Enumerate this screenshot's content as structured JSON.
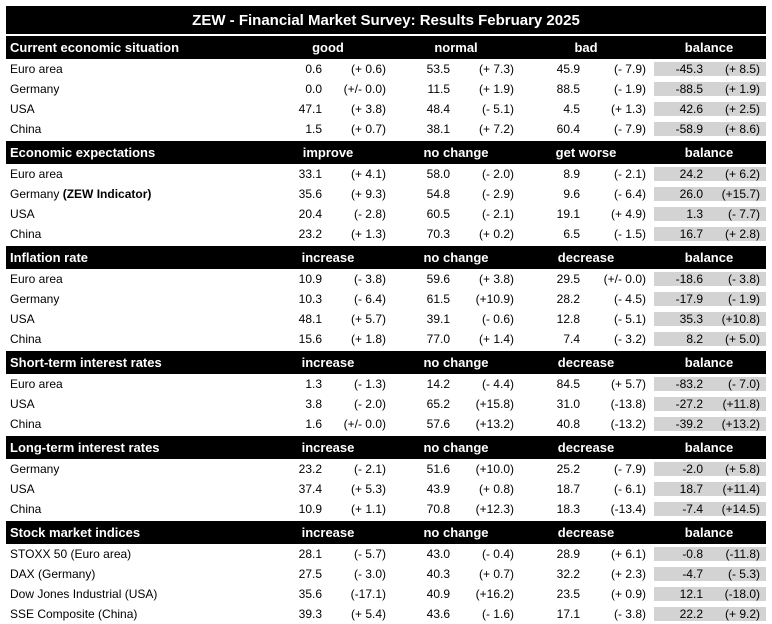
{
  "title": "ZEW - Financial Market Survey: Results February 2025",
  "sections": [
    {
      "name": "Current economic situation",
      "cols": [
        "good",
        "normal",
        "bad",
        "balance"
      ],
      "rows": [
        {
          "label": "Euro area",
          "v": [
            "0.6",
            "(+ 0.6)",
            "53.5",
            "(+ 7.3)",
            "45.9",
            "(- 7.9)",
            "-45.3",
            "(+ 8.5)"
          ]
        },
        {
          "label": "Germany",
          "v": [
            "0.0",
            "(+/- 0.0)",
            "11.5",
            "(+ 1.9)",
            "88.5",
            "(- 1.9)",
            "-88.5",
            "(+ 1.9)"
          ]
        },
        {
          "label": "USA",
          "v": [
            "47.1",
            "(+ 3.8)",
            "48.4",
            "(- 5.1)",
            "4.5",
            "(+ 1.3)",
            "42.6",
            "(+ 2.5)"
          ]
        },
        {
          "label": "China",
          "v": [
            "1.5",
            "(+ 0.7)",
            "38.1",
            "(+ 7.2)",
            "60.4",
            "(- 7.9)",
            "-58.9",
            "(+ 8.6)"
          ]
        }
      ]
    },
    {
      "name": "Economic expectations",
      "cols": [
        "improve",
        "no change",
        "get worse",
        "balance"
      ],
      "rows": [
        {
          "label": "Euro area",
          "v": [
            "33.1",
            "(+ 4.1)",
            "58.0",
            "(- 2.0)",
            "8.9",
            "(- 2.1)",
            "24.2",
            "(+ 6.2)"
          ]
        },
        {
          "label": "Germany",
          "label_bold": "(ZEW Indicator)",
          "v": [
            "35.6",
            "(+ 9.3)",
            "54.8",
            "(- 2.9)",
            "9.6",
            "(- 6.4)",
            "26.0",
            "(+15.7)"
          ]
        },
        {
          "label": "USA",
          "v": [
            "20.4",
            "(- 2.8)",
            "60.5",
            "(- 2.1)",
            "19.1",
            "(+ 4.9)",
            "1.3",
            "(- 7.7)"
          ]
        },
        {
          "label": "China",
          "v": [
            "23.2",
            "(+ 1.3)",
            "70.3",
            "(+ 0.2)",
            "6.5",
            "(- 1.5)",
            "16.7",
            "(+ 2.8)"
          ]
        }
      ]
    },
    {
      "name": "Inflation rate",
      "cols": [
        "increase",
        "no change",
        "decrease",
        "balance"
      ],
      "rows": [
        {
          "label": "Euro area",
          "v": [
            "10.9",
            "(- 3.8)",
            "59.6",
            "(+ 3.8)",
            "29.5",
            "(+/- 0.0)",
            "-18.6",
            "(- 3.8)"
          ]
        },
        {
          "label": "Germany",
          "v": [
            "10.3",
            "(- 6.4)",
            "61.5",
            "(+10.9)",
            "28.2",
            "(- 4.5)",
            "-17.9",
            "(- 1.9)"
          ]
        },
        {
          "label": "USA",
          "v": [
            "48.1",
            "(+ 5.7)",
            "39.1",
            "(- 0.6)",
            "12.8",
            "(- 5.1)",
            "35.3",
            "(+10.8)"
          ]
        },
        {
          "label": "China",
          "v": [
            "15.6",
            "(+ 1.8)",
            "77.0",
            "(+ 1.4)",
            "7.4",
            "(- 3.2)",
            "8.2",
            "(+ 5.0)"
          ]
        }
      ]
    },
    {
      "name": "Short-term interest rates",
      "cols": [
        "increase",
        "no change",
        "decrease",
        "balance"
      ],
      "rows": [
        {
          "label": "Euro area",
          "v": [
            "1.3",
            "(- 1.3)",
            "14.2",
            "(- 4.4)",
            "84.5",
            "(+ 5.7)",
            "-83.2",
            "(- 7.0)"
          ]
        },
        {
          "label": "USA",
          "v": [
            "3.8",
            "(- 2.0)",
            "65.2",
            "(+15.8)",
            "31.0",
            "(-13.8)",
            "-27.2",
            "(+11.8)"
          ]
        },
        {
          "label": "China",
          "v": [
            "1.6",
            "(+/- 0.0)",
            "57.6",
            "(+13.2)",
            "40.8",
            "(-13.2)",
            "-39.2",
            "(+13.2)"
          ]
        }
      ]
    },
    {
      "name": "Long-term interest rates",
      "cols": [
        "increase",
        "no change",
        "decrease",
        "balance"
      ],
      "rows": [
        {
          "label": "Germany",
          "v": [
            "23.2",
            "(- 2.1)",
            "51.6",
            "(+10.0)",
            "25.2",
            "(- 7.9)",
            "-2.0",
            "(+ 5.8)"
          ]
        },
        {
          "label": "USA",
          "v": [
            "37.4",
            "(+ 5.3)",
            "43.9",
            "(+ 0.8)",
            "18.7",
            "(- 6.1)",
            "18.7",
            "(+11.4)"
          ]
        },
        {
          "label": "China",
          "v": [
            "10.9",
            "(+ 1.1)",
            "70.8",
            "(+12.3)",
            "18.3",
            "(-13.4)",
            "-7.4",
            "(+14.5)"
          ]
        }
      ]
    },
    {
      "name": "Stock market indices",
      "cols": [
        "increase",
        "no change",
        "decrease",
        "balance"
      ],
      "rows": [
        {
          "label": "STOXX 50 (Euro area)",
          "v": [
            "28.1",
            "(- 5.7)",
            "43.0",
            "(- 0.4)",
            "28.9",
            "(+ 6.1)",
            "-0.8",
            "(-11.8)"
          ]
        },
        {
          "label": "DAX (Germany)",
          "v": [
            "27.5",
            "(- 3.0)",
            "40.3",
            "(+ 0.7)",
            "32.2",
            "(+ 2.3)",
            "-4.7",
            "(- 5.3)"
          ]
        },
        {
          "label": "Dow Jones Industrial (USA)",
          "v": [
            "35.6",
            "(-17.1)",
            "40.9",
            "(+16.2)",
            "23.5",
            "(+ 0.9)",
            "12.1",
            "(-18.0)"
          ]
        },
        {
          "label": "SSE Composite (China)",
          "v": [
            "39.3",
            "(+ 5.4)",
            "43.6",
            "(- 1.6)",
            "17.1",
            "(- 3.8)",
            "22.2",
            "(+ 9.2)"
          ]
        }
      ]
    }
  ]
}
